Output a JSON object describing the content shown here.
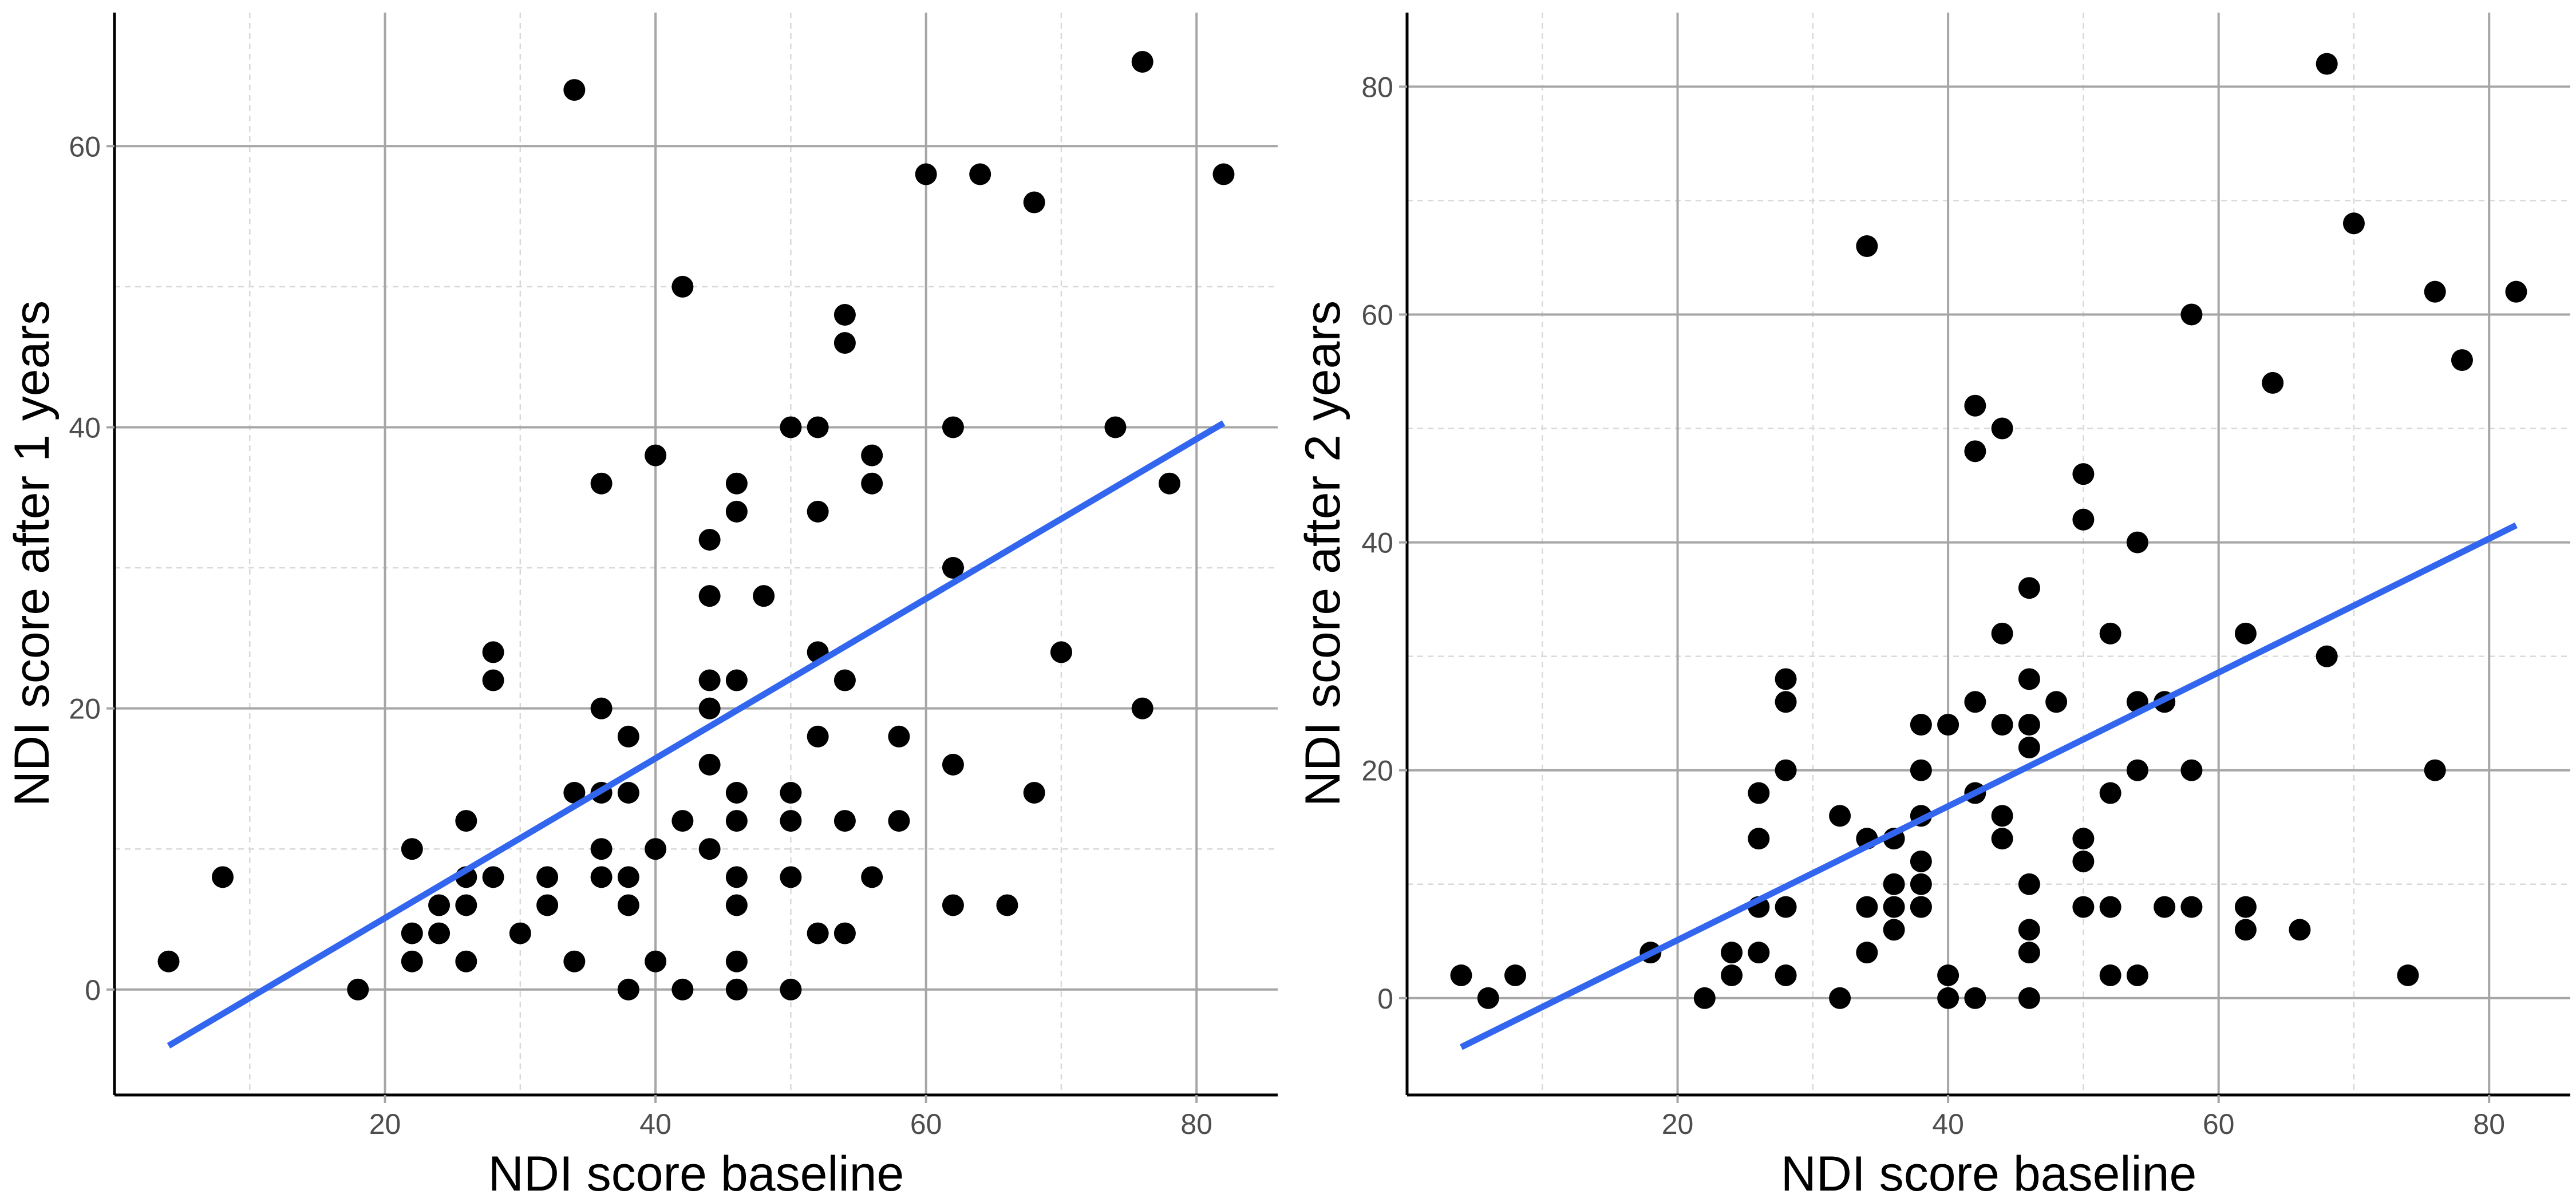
{
  "chart_data": [
    {
      "type": "scatter",
      "xlabel": "NDI score baseline",
      "ylabel": "NDI score after 1 years",
      "xlim": [
        0,
        86
      ],
      "ylim": [
        -7.5,
        69.5
      ],
      "x_ticks": [
        20,
        40,
        60,
        80
      ],
      "y_ticks": [
        0,
        20,
        40,
        60
      ],
      "grid": true,
      "trend_line": {
        "x": [
          4,
          82
        ],
        "y": [
          -4.0,
          40.3
        ]
      },
      "series": [
        {
          "x": [
            4,
            8,
            18,
            22,
            22,
            22,
            24,
            24,
            26,
            26,
            26,
            26,
            28,
            28,
            28,
            30,
            32,
            32,
            34,
            34,
            34,
            36,
            36,
            36,
            36,
            36,
            38,
            38,
            38,
            38,
            38,
            40,
            40,
            40,
            42,
            42,
            42,
            44,
            44,
            44,
            44,
            44,
            44,
            46,
            46,
            46,
            46,
            46,
            46,
            46,
            46,
            46,
            48,
            50,
            50,
            50,
            50,
            50,
            52,
            52,
            52,
            52,
            52,
            54,
            54,
            54,
            54,
            54,
            56,
            56,
            56,
            58,
            58,
            60,
            62,
            62,
            62,
            62,
            64,
            66,
            68,
            68,
            70,
            74,
            76,
            76,
            78,
            82
          ],
          "y": [
            2,
            8,
            0,
            10,
            4,
            2,
            6,
            4,
            12,
            8,
            6,
            2,
            24,
            22,
            8,
            4,
            8,
            6,
            64,
            14,
            2,
            36,
            20,
            14,
            10,
            8,
            18,
            14,
            8,
            6,
            0,
            38,
            10,
            2,
            50,
            12,
            0,
            32,
            28,
            22,
            20,
            16,
            10,
            36,
            34,
            22,
            14,
            12,
            8,
            6,
            2,
            0,
            28,
            40,
            14,
            12,
            8,
            0,
            40,
            34,
            24,
            18,
            4,
            48,
            46,
            22,
            12,
            4,
            38,
            36,
            8,
            18,
            12,
            58,
            40,
            30,
            16,
            6,
            58,
            6,
            56,
            14,
            24,
            40,
            66,
            20,
            36,
            58
          ]
        }
      ]
    },
    {
      "type": "scatter",
      "xlabel": "NDI score baseline",
      "ylabel": "NDI score after 2 years",
      "xlim": [
        0,
        86
      ],
      "ylim": [
        -8.5,
        86.5
      ],
      "x_ticks": [
        20,
        40,
        60,
        80
      ],
      "y_ticks": [
        0,
        20,
        40,
        60,
        80
      ],
      "grid": true,
      "trend_line": {
        "x": [
          4,
          82
        ],
        "y": [
          -4.3,
          41.5
        ]
      },
      "series": [
        {
          "x": [
            4,
            6,
            8,
            18,
            22,
            24,
            24,
            26,
            26,
            26,
            26,
            28,
            28,
            28,
            28,
            28,
            32,
            32,
            34,
            34,
            34,
            34,
            36,
            36,
            36,
            36,
            38,
            38,
            38,
            38,
            38,
            38,
            38,
            40,
            40,
            40,
            42,
            42,
            42,
            42,
            42,
            44,
            44,
            44,
            44,
            44,
            46,
            46,
            46,
            46,
            46,
            46,
            46,
            46,
            48,
            50,
            50,
            50,
            50,
            50,
            52,
            52,
            52,
            52,
            54,
            54,
            54,
            54,
            56,
            56,
            58,
            58,
            58,
            62,
            62,
            62,
            64,
            66,
            68,
            68,
            70,
            74,
            76,
            76,
            78,
            82
          ],
          "y": [
            2,
            0,
            2,
            4,
            0,
            4,
            2,
            18,
            14,
            8,
            4,
            28,
            26,
            20,
            8,
            2,
            16,
            0,
            66,
            14,
            8,
            4,
            14,
            10,
            8,
            6,
            24,
            20,
            16,
            12,
            10,
            8,
            8,
            24,
            2,
            0,
            52,
            48,
            26,
            18,
            0,
            50,
            32,
            24,
            16,
            14,
            36,
            28,
            24,
            22,
            10,
            6,
            4,
            0,
            26,
            46,
            42,
            14,
            12,
            8,
            32,
            18,
            8,
            2,
            40,
            26,
            20,
            2,
            26,
            8,
            60,
            20,
            8,
            32,
            8,
            6,
            54,
            6,
            82,
            30,
            68,
            2,
            62,
            20,
            56,
            62
          ]
        }
      ]
    }
  ],
  "colors": {
    "points": "#000000",
    "trend_line": "#3366ee",
    "grid_major": "#a6a6a6",
    "grid_minor": "#d9d9d9",
    "axis": "#000000",
    "tick_label": "#4d4d4d"
  }
}
